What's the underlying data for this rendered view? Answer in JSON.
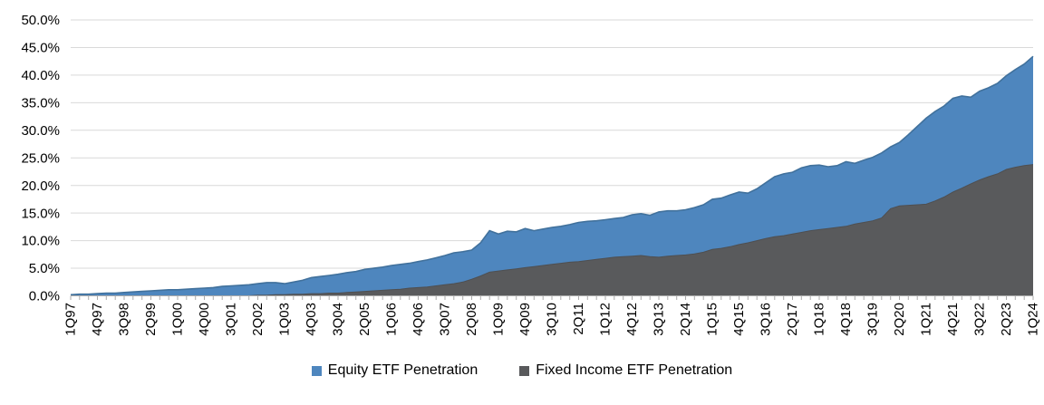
{
  "chart_data": {
    "type": "area",
    "mode": "overlapping",
    "title": "",
    "xlabel": "",
    "ylabel": "",
    "ylim": [
      0,
      50
    ],
    "y_tick_step": 5,
    "y_tick_labels": [
      "0.0%",
      "5.0%",
      "10.0%",
      "15.0%",
      "20.0%",
      "25.0%",
      "30.0%",
      "35.0%",
      "40.0%",
      "45.0%",
      "50.0%"
    ],
    "x_label_every": 3,
    "grid": "horizontal",
    "legend_position": "bottom",
    "categories": [
      "1Q97",
      "2Q97",
      "3Q97",
      "4Q97",
      "1Q98",
      "2Q98",
      "3Q98",
      "4Q98",
      "1Q99",
      "2Q99",
      "3Q99",
      "4Q99",
      "1Q00",
      "2Q00",
      "3Q00",
      "4Q00",
      "1Q01",
      "2Q01",
      "3Q01",
      "4Q01",
      "1Q02",
      "2Q02",
      "3Q02",
      "4Q02",
      "1Q03",
      "2Q03",
      "3Q03",
      "4Q03",
      "1Q04",
      "2Q04",
      "3Q04",
      "4Q04",
      "1Q05",
      "2Q05",
      "3Q05",
      "4Q05",
      "1Q06",
      "2Q06",
      "3Q06",
      "4Q06",
      "1Q07",
      "2Q07",
      "3Q07",
      "4Q07",
      "1Q08",
      "2Q08",
      "3Q08",
      "4Q08",
      "1Q09",
      "2Q09",
      "3Q09",
      "4Q09",
      "1Q10",
      "2Q10",
      "3Q10",
      "4Q10",
      "1Q11",
      "2Q11",
      "3Q11",
      "4Q11",
      "1Q12",
      "2Q12",
      "3Q12",
      "4Q12",
      "1Q13",
      "2Q13",
      "3Q13",
      "4Q13",
      "1Q14",
      "2Q14",
      "3Q14",
      "4Q14",
      "1Q15",
      "2Q15",
      "3Q15",
      "4Q15",
      "1Q16",
      "2Q16",
      "3Q16",
      "4Q16",
      "1Q17",
      "2Q17",
      "3Q17",
      "4Q17",
      "1Q18",
      "2Q18",
      "3Q18",
      "4Q18",
      "1Q19",
      "2Q19",
      "3Q19",
      "4Q19",
      "1Q20",
      "2Q20",
      "3Q20",
      "4Q20",
      "1Q21",
      "2Q21",
      "3Q21",
      "4Q21",
      "1Q22",
      "2Q22",
      "3Q22",
      "4Q22",
      "1Q23",
      "2Q23",
      "3Q23",
      "4Q23",
      "1Q24"
    ],
    "series": [
      {
        "name": "Equity ETF Penetration",
        "color": "#4e86be",
        "edge_color": "#41719c",
        "values": [
          0.2,
          0.3,
          0.3,
          0.4,
          0.5,
          0.5,
          0.6,
          0.7,
          0.8,
          0.9,
          1.0,
          1.1,
          1.1,
          1.2,
          1.3,
          1.4,
          1.5,
          1.7,
          1.8,
          1.9,
          2.0,
          2.2,
          2.4,
          2.4,
          2.2,
          2.5,
          2.8,
          3.3,
          3.5,
          3.7,
          3.9,
          4.2,
          4.4,
          4.8,
          5.0,
          5.2,
          5.5,
          5.7,
          5.9,
          6.2,
          6.5,
          6.9,
          7.3,
          7.8,
          8.0,
          8.3,
          9.6,
          11.8,
          11.2,
          11.7,
          11.6,
          12.2,
          11.8,
          12.1,
          12.4,
          12.6,
          12.9,
          13.3,
          13.5,
          13.6,
          13.8,
          14.0,
          14.2,
          14.7,
          14.9,
          14.6,
          15.2,
          15.4,
          15.4,
          15.6,
          16.0,
          16.5,
          17.5,
          17.7,
          18.3,
          18.8,
          18.6,
          19.4,
          20.5,
          21.6,
          22.1,
          22.4,
          23.2,
          23.6,
          23.7,
          23.4,
          23.6,
          24.3,
          24.0,
          24.6,
          25.1,
          25.9,
          27.0,
          27.8,
          29.2,
          30.7,
          32.2,
          33.4,
          34.4,
          35.8,
          36.2,
          36.0,
          37.1,
          37.7,
          38.5,
          39.9,
          41.0,
          42.0,
          43.4
        ]
      },
      {
        "name": "Fixed Income ETF Penetration",
        "color": "#595a5c",
        "edge_color": "#4e4f51",
        "values": [
          0.0,
          0.0,
          0.0,
          0.0,
          0.0,
          0.0,
          0.0,
          0.0,
          0.0,
          0.0,
          0.0,
          0.0,
          0.0,
          0.0,
          0.0,
          0.0,
          0.0,
          0.0,
          0.0,
          0.0,
          0.0,
          0.1,
          0.1,
          0.2,
          0.2,
          0.3,
          0.3,
          0.4,
          0.4,
          0.5,
          0.5,
          0.6,
          0.7,
          0.8,
          0.9,
          1.0,
          1.1,
          1.2,
          1.4,
          1.5,
          1.6,
          1.8,
          2.0,
          2.2,
          2.5,
          3.0,
          3.6,
          4.3,
          4.5,
          4.7,
          4.9,
          5.1,
          5.3,
          5.5,
          5.7,
          5.9,
          6.1,
          6.2,
          6.4,
          6.6,
          6.8,
          7.0,
          7.1,
          7.2,
          7.3,
          7.1,
          7.0,
          7.2,
          7.3,
          7.4,
          7.6,
          7.9,
          8.4,
          8.6,
          8.9,
          9.3,
          9.6,
          10.0,
          10.4,
          10.7,
          10.9,
          11.2,
          11.5,
          11.8,
          12.0,
          12.2,
          12.4,
          12.6,
          13.0,
          13.3,
          13.6,
          14.1,
          15.8,
          16.3,
          16.4,
          16.5,
          16.6,
          17.2,
          17.9,
          18.8,
          19.5,
          20.3,
          21.0,
          21.6,
          22.1,
          22.9,
          23.3,
          23.6,
          23.8
        ]
      }
    ],
    "colors": {
      "gridline": "#d9d9d9",
      "axis": "#ababab",
      "tick_text": "#000000",
      "background": "#ffffff"
    }
  }
}
